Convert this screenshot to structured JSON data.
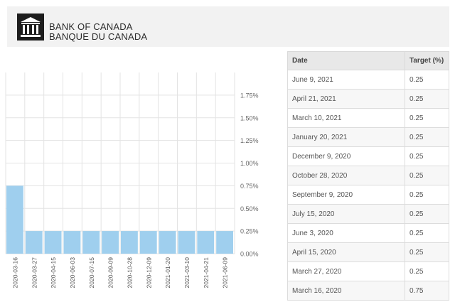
{
  "header": {
    "logo_icon": "bank-building-icon",
    "title_en": "BANK OF CANADA",
    "title_fr": "BANQUE DU CANADA"
  },
  "table": {
    "columns": [
      "Date",
      "Target (%)"
    ],
    "rows": [
      {
        "date": "June 9, 2021",
        "target": "0.25"
      },
      {
        "date": "April 21, 2021",
        "target": "0.25"
      },
      {
        "date": "March 10, 2021",
        "target": "0.25"
      },
      {
        "date": "January 20, 2021",
        "target": "0.25"
      },
      {
        "date": "December 9, 2020",
        "target": "0.25"
      },
      {
        "date": "October 28, 2020",
        "target": "0.25"
      },
      {
        "date": "September 9, 2020",
        "target": "0.25"
      },
      {
        "date": "July 15, 2020",
        "target": "0.25"
      },
      {
        "date": "June 3, 2020",
        "target": "0.25"
      },
      {
        "date": "April 15, 2020",
        "target": "0.25"
      },
      {
        "date": "March 27, 2020",
        "target": "0.25"
      },
      {
        "date": "March 16, 2020",
        "target": "0.75"
      }
    ]
  },
  "chart_data": {
    "type": "bar",
    "categories": [
      "2020-03-16",
      "2020-03-27",
      "2020-04-15",
      "2020-06-03",
      "2020-07-15",
      "2020-09-09",
      "2020-10-28",
      "2020-12-09",
      "2021-01-20",
      "2021-03-10",
      "2021-04-21",
      "2021-06-09"
    ],
    "values": [
      0.75,
      0.25,
      0.25,
      0.25,
      0.25,
      0.25,
      0.25,
      0.25,
      0.25,
      0.25,
      0.25,
      0.25
    ],
    "ytick_labels": [
      "0.00%",
      "0.25%",
      "0.50%",
      "0.75%",
      "1.00%",
      "1.25%",
      "1.50%",
      "1.75%"
    ],
    "ytick_values": [
      0,
      0.25,
      0.5,
      0.75,
      1.0,
      1.25,
      1.5,
      1.75
    ],
    "ylim": [
      0,
      2.0
    ],
    "y_axis_side": "right",
    "grid": true,
    "bar_color": "#9fcfee",
    "grid_color": "#e3e3e3"
  }
}
